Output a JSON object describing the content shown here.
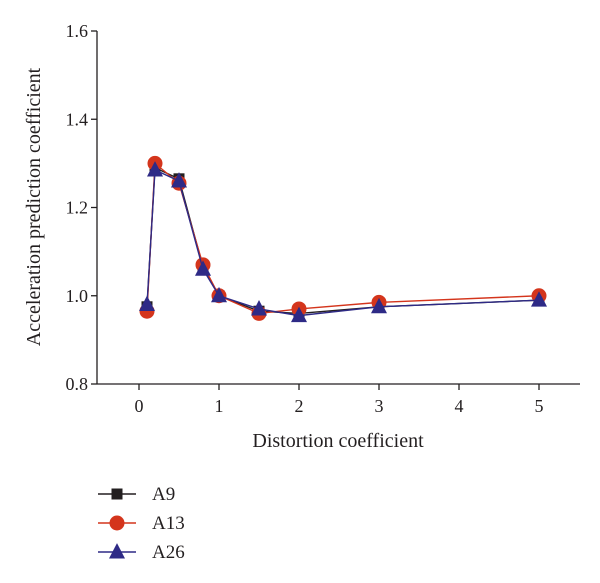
{
  "chart_data": {
    "type": "line",
    "xlabel": "Distortion coefficient",
    "ylabel": "Acceleration prediction coefficient",
    "ylim": [
      0.8,
      1.6
    ],
    "y_ticks": [
      "0.8",
      "1.0",
      "1.2",
      "1.4",
      "1.6"
    ],
    "x_ticks": [
      "0",
      "1",
      "2",
      "3",
      "4",
      "5"
    ],
    "x_tick_values": [
      0,
      1,
      2,
      3,
      4,
      5
    ],
    "grid": false,
    "legend_position": "bottom-left",
    "series": [
      {
        "name": "A9",
        "color": "#231f20",
        "marker": "square",
        "x": [
          0.1,
          0.2,
          0.5,
          0.8,
          1.0,
          1.5,
          2.0,
          3.0,
          5.0
        ],
        "values": [
          0.975,
          1.29,
          1.265,
          1.065,
          1.0,
          0.965,
          0.96,
          0.975,
          0.99
        ]
      },
      {
        "name": "A13",
        "color": "#d4351c",
        "marker": "circle",
        "x": [
          0.1,
          0.2,
          0.5,
          0.8,
          1.0,
          1.5,
          2.0,
          3.0,
          5.0
        ],
        "values": [
          0.965,
          1.3,
          1.255,
          1.07,
          1.0,
          0.96,
          0.97,
          0.985,
          1.0
        ]
      },
      {
        "name": "A26",
        "color": "#2e2a86",
        "marker": "triangle",
        "x": [
          0.1,
          0.2,
          0.5,
          0.8,
          1.0,
          1.5,
          2.0,
          3.0,
          5.0
        ],
        "values": [
          0.98,
          1.285,
          1.26,
          1.06,
          1.0,
          0.97,
          0.955,
          0.975,
          0.99
        ]
      }
    ]
  }
}
